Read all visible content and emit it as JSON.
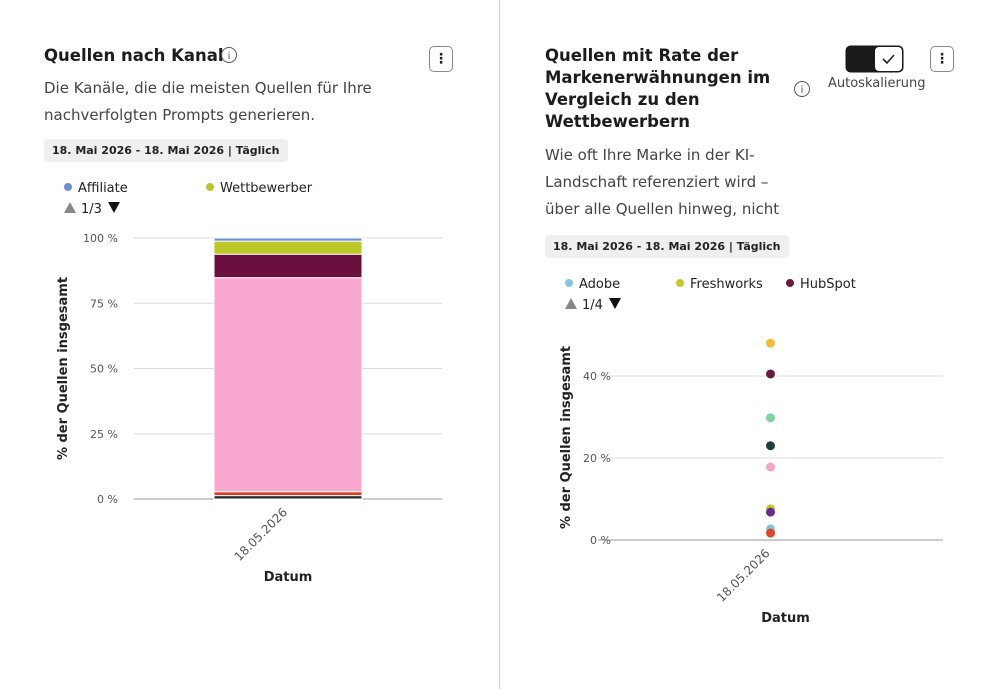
{
  "chart_data": [
    {
      "type": "bar",
      "stacked": true,
      "title": "Quellen nach Kanal",
      "subtitle": "Die Kanäle, die die meisten Quellen für Ihre nachverfolgten Prompts generieren.",
      "date_range": "18. Mai 2026 - 18. Mai 2026 | Täglich",
      "legend_page": "1/3",
      "x_label": "Datum",
      "y_label": "% der Quellen insgesamt",
      "categories": [
        "18.05.2026"
      ],
      "series": [
        {
          "name": "Affiliate",
          "color": "#6b8fd6",
          "values": [
            1.2
          ]
        },
        {
          "name": "Wettbewerber",
          "color": "#bcc72a",
          "values": [
            5
          ]
        },
        {
          "name": null,
          "color": "#6b0f3f",
          "values": [
            9
          ]
        },
        {
          "name": null,
          "color": "#fba8d1",
          "values": [
            82
          ]
        },
        {
          "name": null,
          "color": "#d93b1f",
          "values": [
            1.5
          ]
        },
        {
          "name": null,
          "color": "#1d2f2c",
          "values": [
            1.3
          ]
        }
      ],
      "ylim": [
        0,
        100
      ],
      "yticks": [
        {
          "value": 0,
          "label": "0 %"
        },
        {
          "value": 25,
          "label": "25 %"
        },
        {
          "value": 50,
          "label": "50 %"
        },
        {
          "value": 75,
          "label": "75 %"
        },
        {
          "value": 100,
          "label": "100 %"
        }
      ],
      "grid": true
    },
    {
      "type": "scatter",
      "title": "Quellen mit Rate der Markenerwähnungen im Vergleich zu den Wettbewerbern",
      "subtitle": "Wie oft Ihre Marke in der KI-Landschaft referenziert wird – über alle Quellen hinweg, nicht nur auf",
      "date_range": "18. Mai 2026 - 18. Mai 2026 | Täglich",
      "toggle_label": "Autoskalierung",
      "legend_page": "1/4",
      "x_label": "Datum",
      "y_label": "% der Quellen insgesamt",
      "categories": [
        "18.05.2026"
      ],
      "series": [
        {
          "name": "Adobe",
          "color": "#7fc7dc",
          "values": [
            2.7
          ]
        },
        {
          "name": "Freshworks",
          "color": "#c8c62a",
          "values": [
            7.6
          ]
        },
        {
          "name": "HubSpot",
          "color": "#6b1a3f",
          "values": [
            40.5
          ]
        },
        {
          "name": null,
          "color": "#f6b935",
          "values": [
            48
          ]
        },
        {
          "name": null,
          "color": "#7fd3a0",
          "values": [
            29.8
          ]
        },
        {
          "name": null,
          "color": "#1f3d3d",
          "values": [
            23
          ]
        },
        {
          "name": null,
          "color": "#f6a5c8",
          "values": [
            17.8
          ]
        },
        {
          "name": null,
          "color": "#6a2a8f",
          "values": [
            6.8
          ]
        },
        {
          "name": null,
          "color": "#e0452c",
          "values": [
            1.7
          ]
        }
      ],
      "ylim": [
        0,
        50
      ],
      "yticks": [
        {
          "value": 0,
          "label": "0 %"
        },
        {
          "value": 20,
          "label": "20 %"
        },
        {
          "value": 40,
          "label": "40 %"
        }
      ],
      "grid": true
    }
  ]
}
